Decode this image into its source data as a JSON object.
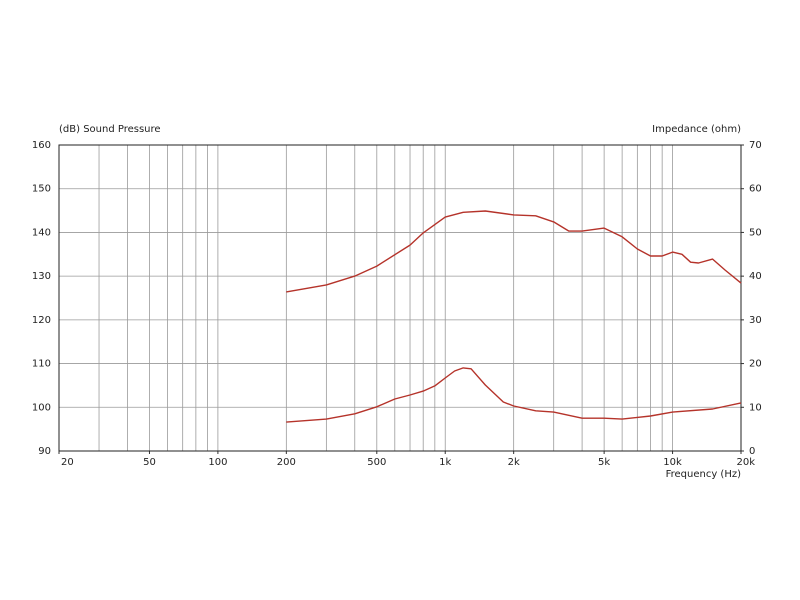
{
  "chart_data": {
    "type": "line",
    "ylabel": "(dB)  Sound Pressure",
    "y2label": "Impedance  (ohm)",
    "xlabel": "Frequency  (Hz)",
    "xscale": "log",
    "xlim": [
      20,
      20000
    ],
    "xticks": [
      20,
      50,
      100,
      200,
      500,
      {
        "value": 1000,
        "label": "1k"
      },
      {
        "value": 2000,
        "label": "2k"
      },
      {
        "value": 5000,
        "label": "5k"
      },
      {
        "value": 10000,
        "label": "10k"
      },
      {
        "value": 20000,
        "label": "20k"
      }
    ],
    "xgrid": [
      30,
      40,
      50,
      60,
      70,
      80,
      90,
      100,
      200,
      300,
      400,
      500,
      600,
      700,
      800,
      900,
      1000,
      2000,
      3000,
      4000,
      5000,
      6000,
      7000,
      8000,
      9000,
      10000
    ],
    "ylim": [
      90,
      160
    ],
    "yticks": [
      90,
      100,
      110,
      120,
      130,
      140,
      150,
      160
    ],
    "y2lim": [
      0,
      70
    ],
    "y2ticks": [
      0,
      10,
      20,
      30,
      40,
      50,
      60,
      70
    ],
    "grid": true,
    "series": [
      {
        "color": "#b5332a",
        "x": [
          200,
          300,
          400,
          500,
          700,
          800,
          1000,
          1200,
          1500,
          2000,
          2500,
          3000,
          3500,
          4000,
          5000,
          6000,
          7000,
          8000,
          9000,
          10000,
          11000,
          12000,
          13000,
          15000,
          17000,
          20000
        ],
        "values": [
          126.4,
          128,
          130,
          132.3,
          137.1,
          139.9,
          143.5,
          144.6,
          144.9,
          144,
          143.8,
          142.4,
          140.3,
          140.3,
          141,
          139,
          136.2,
          134.6,
          134.6,
          135.5,
          135,
          133.2,
          133,
          133.9,
          131.4,
          128.4
        ]
      },
      {
        "color": "#b5332a",
        "axis": "y2",
        "x": [
          200,
          300,
          400,
          500,
          600,
          700,
          800,
          900,
          1000,
          1100,
          1200,
          1300,
          1500,
          1800,
          2000,
          2500,
          3000,
          4000,
          5000,
          6000,
          8000,
          10000,
          15000,
          20000
        ],
        "values": [
          6.6,
          7.3,
          8.5,
          10.1,
          11.9,
          12.8,
          13.7,
          14.9,
          16.7,
          18.3,
          19,
          18.8,
          15.1,
          11.2,
          10.3,
          9.2,
          8.9,
          7.5,
          7.5,
          7.3,
          8,
          8.9,
          9.6,
          11
        ]
      }
    ]
  }
}
